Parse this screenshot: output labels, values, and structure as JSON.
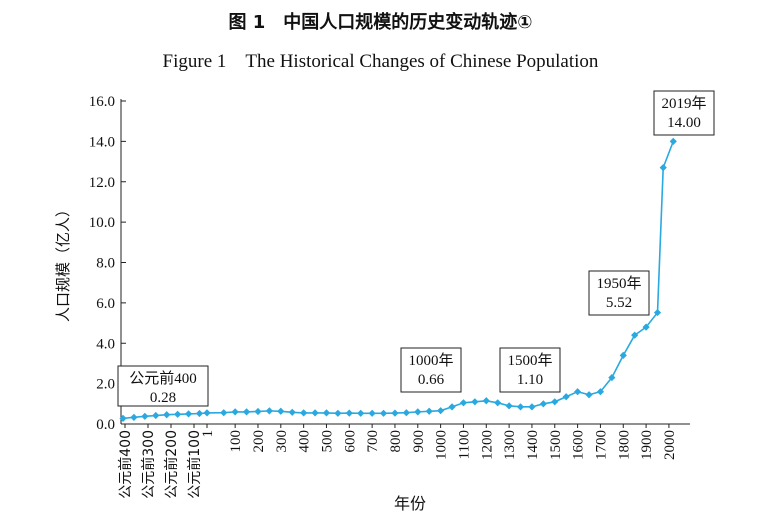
{
  "figure": {
    "title_cn": "图 1　中国人口规模的历史变动轨迹①",
    "title_en": "Figure 1　The Historical Changes of Chinese Population"
  },
  "chart_data": {
    "type": "line",
    "xlabel": "年份",
    "ylabel": "人口规模（亿人）",
    "ylim": [
      0,
      16
    ],
    "yticks": [
      "0.0",
      "2.0",
      "4.0",
      "6.0",
      "8.0",
      "10.0",
      "12.0",
      "14.0",
      "16.0"
    ],
    "xticks": [
      "公元前400",
      "公元前300",
      "公元前200",
      "公元前100",
      "1",
      "100",
      "200",
      "300",
      "400",
      "500",
      "600",
      "700",
      "800",
      "900",
      "1000",
      "1100",
      "1200",
      "1300",
      "1400",
      "1500",
      "1600",
      "1700",
      "1800",
      "1900",
      "2000"
    ],
    "grid": false,
    "color": "#29a9df",
    "series": [
      {
        "name": "人口规模",
        "x": [
          -400,
          -350,
          -300,
          -250,
          -200,
          -150,
          -100,
          -50,
          1,
          50,
          100,
          150,
          200,
          250,
          300,
          350,
          400,
          450,
          500,
          550,
          600,
          650,
          700,
          750,
          800,
          850,
          900,
          950,
          1000,
          1050,
          1100,
          1150,
          1200,
          1250,
          1300,
          1350,
          1400,
          1450,
          1500,
          1550,
          1600,
          1650,
          1700,
          1750,
          1800,
          1850,
          1900,
          1950,
          1975,
          2019
        ],
        "values": [
          0.28,
          0.33,
          0.38,
          0.42,
          0.46,
          0.48,
          0.5,
          0.52,
          0.55,
          0.56,
          0.6,
          0.6,
          0.62,
          0.65,
          0.63,
          0.58,
          0.55,
          0.55,
          0.55,
          0.53,
          0.54,
          0.53,
          0.53,
          0.53,
          0.54,
          0.56,
          0.6,
          0.63,
          0.66,
          0.85,
          1.05,
          1.1,
          1.15,
          1.05,
          0.9,
          0.85,
          0.85,
          1.0,
          1.1,
          1.35,
          1.6,
          1.45,
          1.6,
          2.3,
          3.4,
          4.4,
          4.8,
          5.52,
          12.7,
          14.0
        ]
      }
    ],
    "annotations": [
      {
        "year_label": "公元前400",
        "value_label": "0.28",
        "x": -400,
        "y": 0.28
      },
      {
        "year_label": "1000年",
        "value_label": "0.66",
        "x": 1000,
        "y": 0.66
      },
      {
        "year_label": "1500年",
        "value_label": "1.10",
        "x": 1500,
        "y": 1.1
      },
      {
        "year_label": "1950年",
        "value_label": "5.52",
        "x": 1950,
        "y": 5.52
      },
      {
        "year_label": "2019年",
        "value_label": "14.00",
        "x": 2019,
        "y": 14.0
      }
    ]
  }
}
